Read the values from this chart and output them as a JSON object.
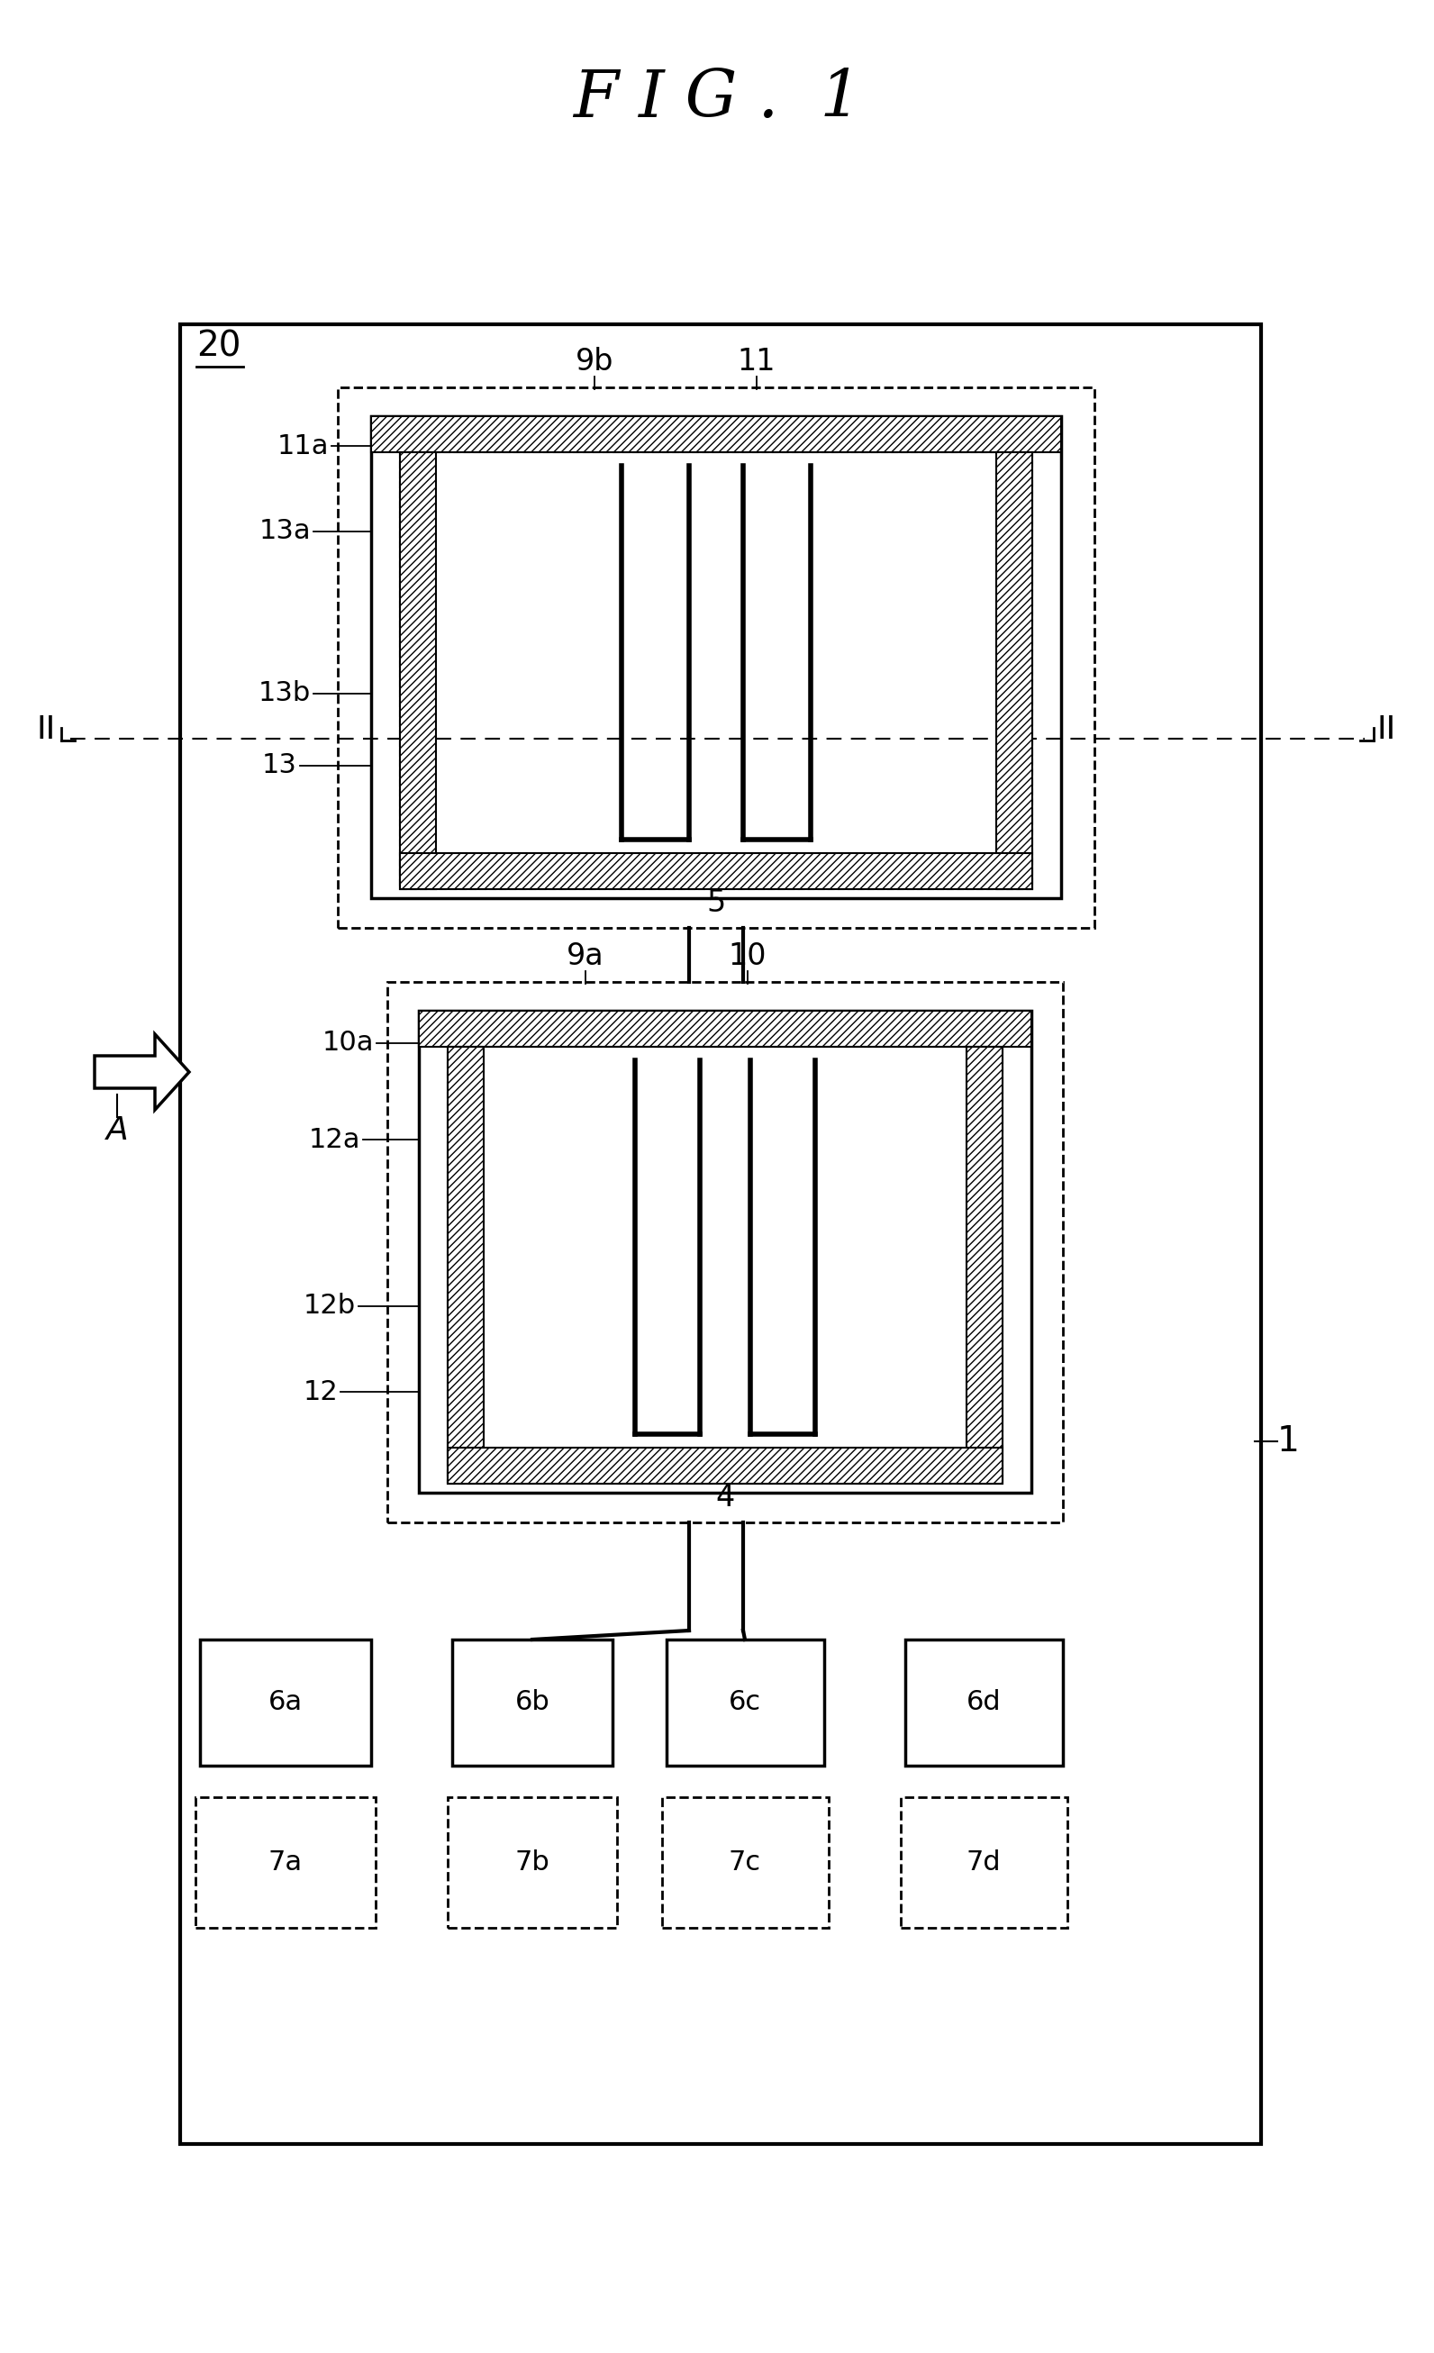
{
  "title": "F I G .  1",
  "bg_color": "#ffffff",
  "label_20": "20",
  "label_1": "1",
  "label_II_left": "II",
  "label_II_right": "II",
  "label_A": "A",
  "labels_top_sensor": [
    "9b",
    "11",
    "11a",
    "13a",
    "13b",
    "13",
    "5"
  ],
  "labels_bottom_sensor": [
    "9a",
    "10",
    "10a",
    "12a",
    "12b",
    "12",
    "4"
  ],
  "labels_pads": [
    "6a",
    "6b",
    "6c",
    "6d",
    "7a",
    "7b",
    "7c",
    "7d"
  ]
}
